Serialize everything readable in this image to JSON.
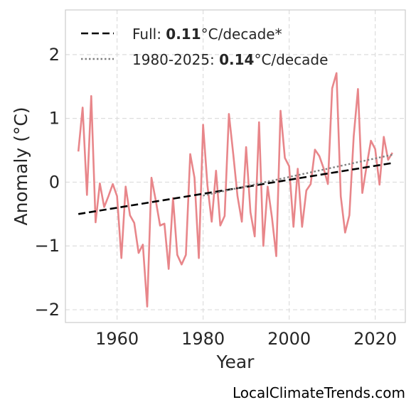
{
  "chart_data": {
    "type": "line",
    "xlabel": "Year",
    "ylabel": "Anomaly (°C)",
    "xlim": [
      1948,
      2027
    ],
    "ylim": [
      -2.2,
      2.7
    ],
    "x_ticks": [
      1960,
      1980,
      2000,
      2020
    ],
    "y_ticks": [
      -2,
      -1,
      0,
      1,
      2
    ],
    "y_tick_labels": [
      "−2",
      "−1",
      "0",
      "1",
      "2"
    ],
    "grid": true,
    "legend_placement": "top-left",
    "series": [
      {
        "color": "#e8868a",
        "x": [
          1951,
          1952,
          1953,
          1954,
          1955,
          1956,
          1957,
          1958,
          1959,
          1960,
          1961,
          1962,
          1963,
          1964,
          1965,
          1966,
          1967,
          1968,
          1969,
          1970,
          1971,
          1972,
          1973,
          1974,
          1975,
          1976,
          1977,
          1978,
          1979,
          1980,
          1981,
          1982,
          1983,
          1984,
          1985,
          1986,
          1987,
          1988,
          1989,
          1990,
          1991,
          1992,
          1993,
          1994,
          1995,
          1996,
          1997,
          1998,
          1999,
          2000,
          2001,
          2002,
          2003,
          2004,
          2005,
          2006,
          2007,
          2008,
          2009,
          2010,
          2011,
          2012,
          2013,
          2014,
          2015,
          2016,
          2017,
          2018,
          2019,
          2020,
          2021,
          2022,
          2023,
          2024
        ],
        "values": [
          0.48,
          1.17,
          -0.2,
          1.35,
          -0.63,
          -0.02,
          -0.39,
          -0.22,
          -0.03,
          -0.22,
          -1.19,
          -0.07,
          -0.52,
          -0.64,
          -1.11,
          -0.98,
          -1.95,
          0.07,
          -0.29,
          -0.68,
          -0.65,
          -1.36,
          -0.25,
          -1.14,
          -1.29,
          -1.14,
          0.44,
          0.07,
          -1.19,
          0.9,
          -0.05,
          -0.62,
          0.18,
          -0.68,
          -0.53,
          1.07,
          0.44,
          -0.22,
          -0.62,
          0.55,
          -0.47,
          -0.85,
          0.94,
          -1.0,
          -0.07,
          -0.55,
          -1.16,
          1.12,
          0.38,
          0.25,
          -0.7,
          0.21,
          -0.7,
          -0.13,
          -0.03,
          0.51,
          0.41,
          0.22,
          -0.03,
          1.47,
          1.71,
          -0.22,
          -0.79,
          -0.52,
          0.72,
          1.46,
          -0.17,
          0.25,
          0.65,
          0.52,
          -0.04,
          0.71,
          0.35,
          0.46
        ]
      },
      {
        "name": "Full: 0.11°C/decade*",
        "style": "dashed",
        "color": "#000000",
        "x": [
          1951,
          2024
        ],
        "values": [
          -0.5,
          0.3
        ]
      },
      {
        "name": "1980-2025: 0.14°C/decade",
        "style": "dotted",
        "color": "#808080",
        "x": [
          1980,
          2024
        ],
        "values": [
          -0.21,
          0.43
        ]
      }
    ],
    "legend": [
      {
        "prefix": "Full: ",
        "bold": "0.11",
        "suffix": "°C/decade*"
      },
      {
        "prefix": "1980-2025: ",
        "bold": "0.14",
        "suffix": "°C/decade"
      }
    ]
  },
  "watermark": "LocalClimateTrends.com"
}
